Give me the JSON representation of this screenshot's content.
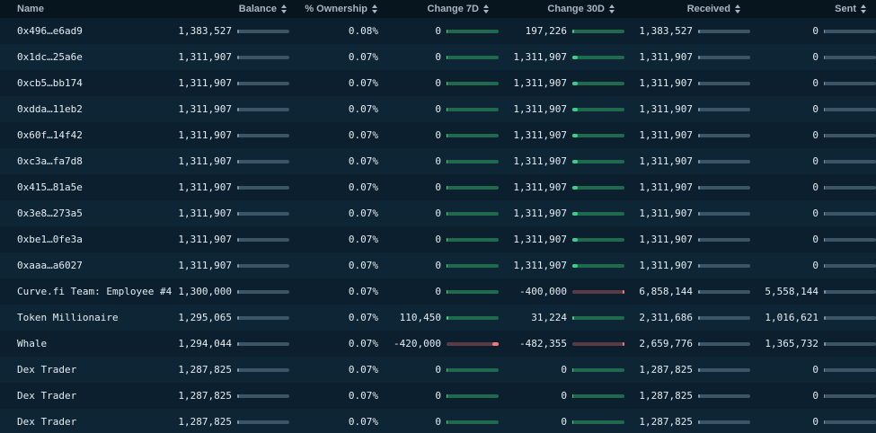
{
  "colors": {
    "background": "#0b2030",
    "header_bg": "#07151f",
    "positive": "#3ad08a",
    "negative": "#f07a7a",
    "track": "#3b5466"
  },
  "headers": {
    "name": "Name",
    "balance": "Balance",
    "ownership": "% Ownership",
    "change7d": "Change 7D",
    "change30d": "Change 30D",
    "received": "Received",
    "sent": "Sent"
  },
  "rows": [
    {
      "name": "0x496…e6ad9",
      "balance": "1,383,527",
      "ownership": "0.08%",
      "change7d": "0",
      "change30d": "197,226",
      "received": "1,383,527",
      "sent": "0",
      "bal_frac": 0.02,
      "c7_dir": "neutral",
      "c7_frac": 0,
      "c30_dir": "pos",
      "c30_frac": 0.02,
      "rec_frac": 0.02,
      "sent_frac": 0.0
    },
    {
      "name": "0x1dc…25a6e",
      "balance": "1,311,907",
      "ownership": "0.07%",
      "change7d": "0",
      "change30d": "1,311,907",
      "received": "1,311,907",
      "sent": "0",
      "bal_frac": 0.02,
      "c7_dir": "neutral",
      "c7_frac": 0,
      "c30_dir": "pos",
      "c30_frac": 0.1,
      "rec_frac": 0.02,
      "sent_frac": 0.0
    },
    {
      "name": "0xcb5…bb174",
      "balance": "1,311,907",
      "ownership": "0.07%",
      "change7d": "0",
      "change30d": "1,311,907",
      "received": "1,311,907",
      "sent": "0",
      "bal_frac": 0.02,
      "c7_dir": "neutral",
      "c7_frac": 0,
      "c30_dir": "pos",
      "c30_frac": 0.1,
      "rec_frac": 0.02,
      "sent_frac": 0.0
    },
    {
      "name": "0xdda…11eb2",
      "balance": "1,311,907",
      "ownership": "0.07%",
      "change7d": "0",
      "change30d": "1,311,907",
      "received": "1,311,907",
      "sent": "0",
      "bal_frac": 0.02,
      "c7_dir": "neutral",
      "c7_frac": 0,
      "c30_dir": "pos",
      "c30_frac": 0.1,
      "rec_frac": 0.02,
      "sent_frac": 0.0
    },
    {
      "name": "0x60f…14f42",
      "balance": "1,311,907",
      "ownership": "0.07%",
      "change7d": "0",
      "change30d": "1,311,907",
      "received": "1,311,907",
      "sent": "0",
      "bal_frac": 0.02,
      "c7_dir": "neutral",
      "c7_frac": 0,
      "c30_dir": "pos",
      "c30_frac": 0.1,
      "rec_frac": 0.02,
      "sent_frac": 0.0
    },
    {
      "name": "0xc3a…fa7d8",
      "balance": "1,311,907",
      "ownership": "0.07%",
      "change7d": "0",
      "change30d": "1,311,907",
      "received": "1,311,907",
      "sent": "0",
      "bal_frac": 0.02,
      "c7_dir": "neutral",
      "c7_frac": 0,
      "c30_dir": "pos",
      "c30_frac": 0.1,
      "rec_frac": 0.02,
      "sent_frac": 0.0
    },
    {
      "name": "0x415…81a5e",
      "balance": "1,311,907",
      "ownership": "0.07%",
      "change7d": "0",
      "change30d": "1,311,907",
      "received": "1,311,907",
      "sent": "0",
      "bal_frac": 0.02,
      "c7_dir": "neutral",
      "c7_frac": 0,
      "c30_dir": "pos",
      "c30_frac": 0.1,
      "rec_frac": 0.02,
      "sent_frac": 0.0
    },
    {
      "name": "0x3e8…273a5",
      "balance": "1,311,907",
      "ownership": "0.07%",
      "change7d": "0",
      "change30d": "1,311,907",
      "received": "1,311,907",
      "sent": "0",
      "bal_frac": 0.02,
      "c7_dir": "neutral",
      "c7_frac": 0,
      "c30_dir": "pos",
      "c30_frac": 0.1,
      "rec_frac": 0.02,
      "sent_frac": 0.0
    },
    {
      "name": "0xbe1…0fe3a",
      "balance": "1,311,907",
      "ownership": "0.07%",
      "change7d": "0",
      "change30d": "1,311,907",
      "received": "1,311,907",
      "sent": "0",
      "bal_frac": 0.02,
      "c7_dir": "neutral",
      "c7_frac": 0,
      "c30_dir": "pos",
      "c30_frac": 0.1,
      "rec_frac": 0.02,
      "sent_frac": 0.0
    },
    {
      "name": "0xaaa…a6027",
      "balance": "1,311,907",
      "ownership": "0.07%",
      "change7d": "0",
      "change30d": "1,311,907",
      "received": "1,311,907",
      "sent": "0",
      "bal_frac": 0.02,
      "c7_dir": "neutral",
      "c7_frac": 0,
      "c30_dir": "pos",
      "c30_frac": 0.1,
      "rec_frac": 0.02,
      "sent_frac": 0.0
    },
    {
      "name": "Curve.fi Team: Employee #4",
      "balance": "1,300,000",
      "ownership": "0.07%",
      "change7d": "0",
      "change30d": "-400,000",
      "received": "6,858,144",
      "sent": "5,558,144",
      "bal_frac": 0.02,
      "c7_dir": "neutral",
      "c7_frac": 0,
      "c30_dir": "neg",
      "c30_frac": 0.03,
      "rec_frac": 0.02,
      "sent_frac": 0.02
    },
    {
      "name": "Token Millionaire",
      "balance": "1,295,065",
      "ownership": "0.07%",
      "change7d": "110,450",
      "change30d": "31,224",
      "received": "2,311,686",
      "sent": "1,016,621",
      "bal_frac": 0.02,
      "c7_dir": "pos",
      "c7_frac": 0.02,
      "c30_dir": "pos",
      "c30_frac": 0.02,
      "rec_frac": 0.02,
      "sent_frac": 0.02
    },
    {
      "name": "Whale",
      "balance": "1,294,044",
      "ownership": "0.07%",
      "change7d": "-420,000",
      "change30d": "-482,355",
      "received": "2,659,776",
      "sent": "1,365,732",
      "bal_frac": 0.02,
      "c7_dir": "neg",
      "c7_frac": 0.12,
      "c30_dir": "neg",
      "c30_frac": 0.03,
      "rec_frac": 0.02,
      "sent_frac": 0.02
    },
    {
      "name": "Dex Trader",
      "balance": "1,287,825",
      "ownership": "0.07%",
      "change7d": "0",
      "change30d": "0",
      "received": "1,287,825",
      "sent": "0",
      "bal_frac": 0.02,
      "c7_dir": "neutral",
      "c7_frac": 0,
      "c30_dir": "neutral",
      "c30_frac": 0,
      "rec_frac": 0.02,
      "sent_frac": 0.0
    },
    {
      "name": "Dex Trader",
      "balance": "1,287,825",
      "ownership": "0.07%",
      "change7d": "0",
      "change30d": "0",
      "received": "1,287,825",
      "sent": "0",
      "bal_frac": 0.02,
      "c7_dir": "neutral",
      "c7_frac": 0,
      "c30_dir": "neutral",
      "c30_frac": 0,
      "rec_frac": 0.02,
      "sent_frac": 0.0
    },
    {
      "name": "Dex Trader",
      "balance": "1,287,825",
      "ownership": "0.07%",
      "change7d": "0",
      "change30d": "0",
      "received": "1,287,825",
      "sent": "0",
      "bal_frac": 0.02,
      "c7_dir": "neutral",
      "c7_frac": 0,
      "c30_dir": "neutral",
      "c30_frac": 0,
      "rec_frac": 0.02,
      "sent_frac": 0.0
    }
  ]
}
